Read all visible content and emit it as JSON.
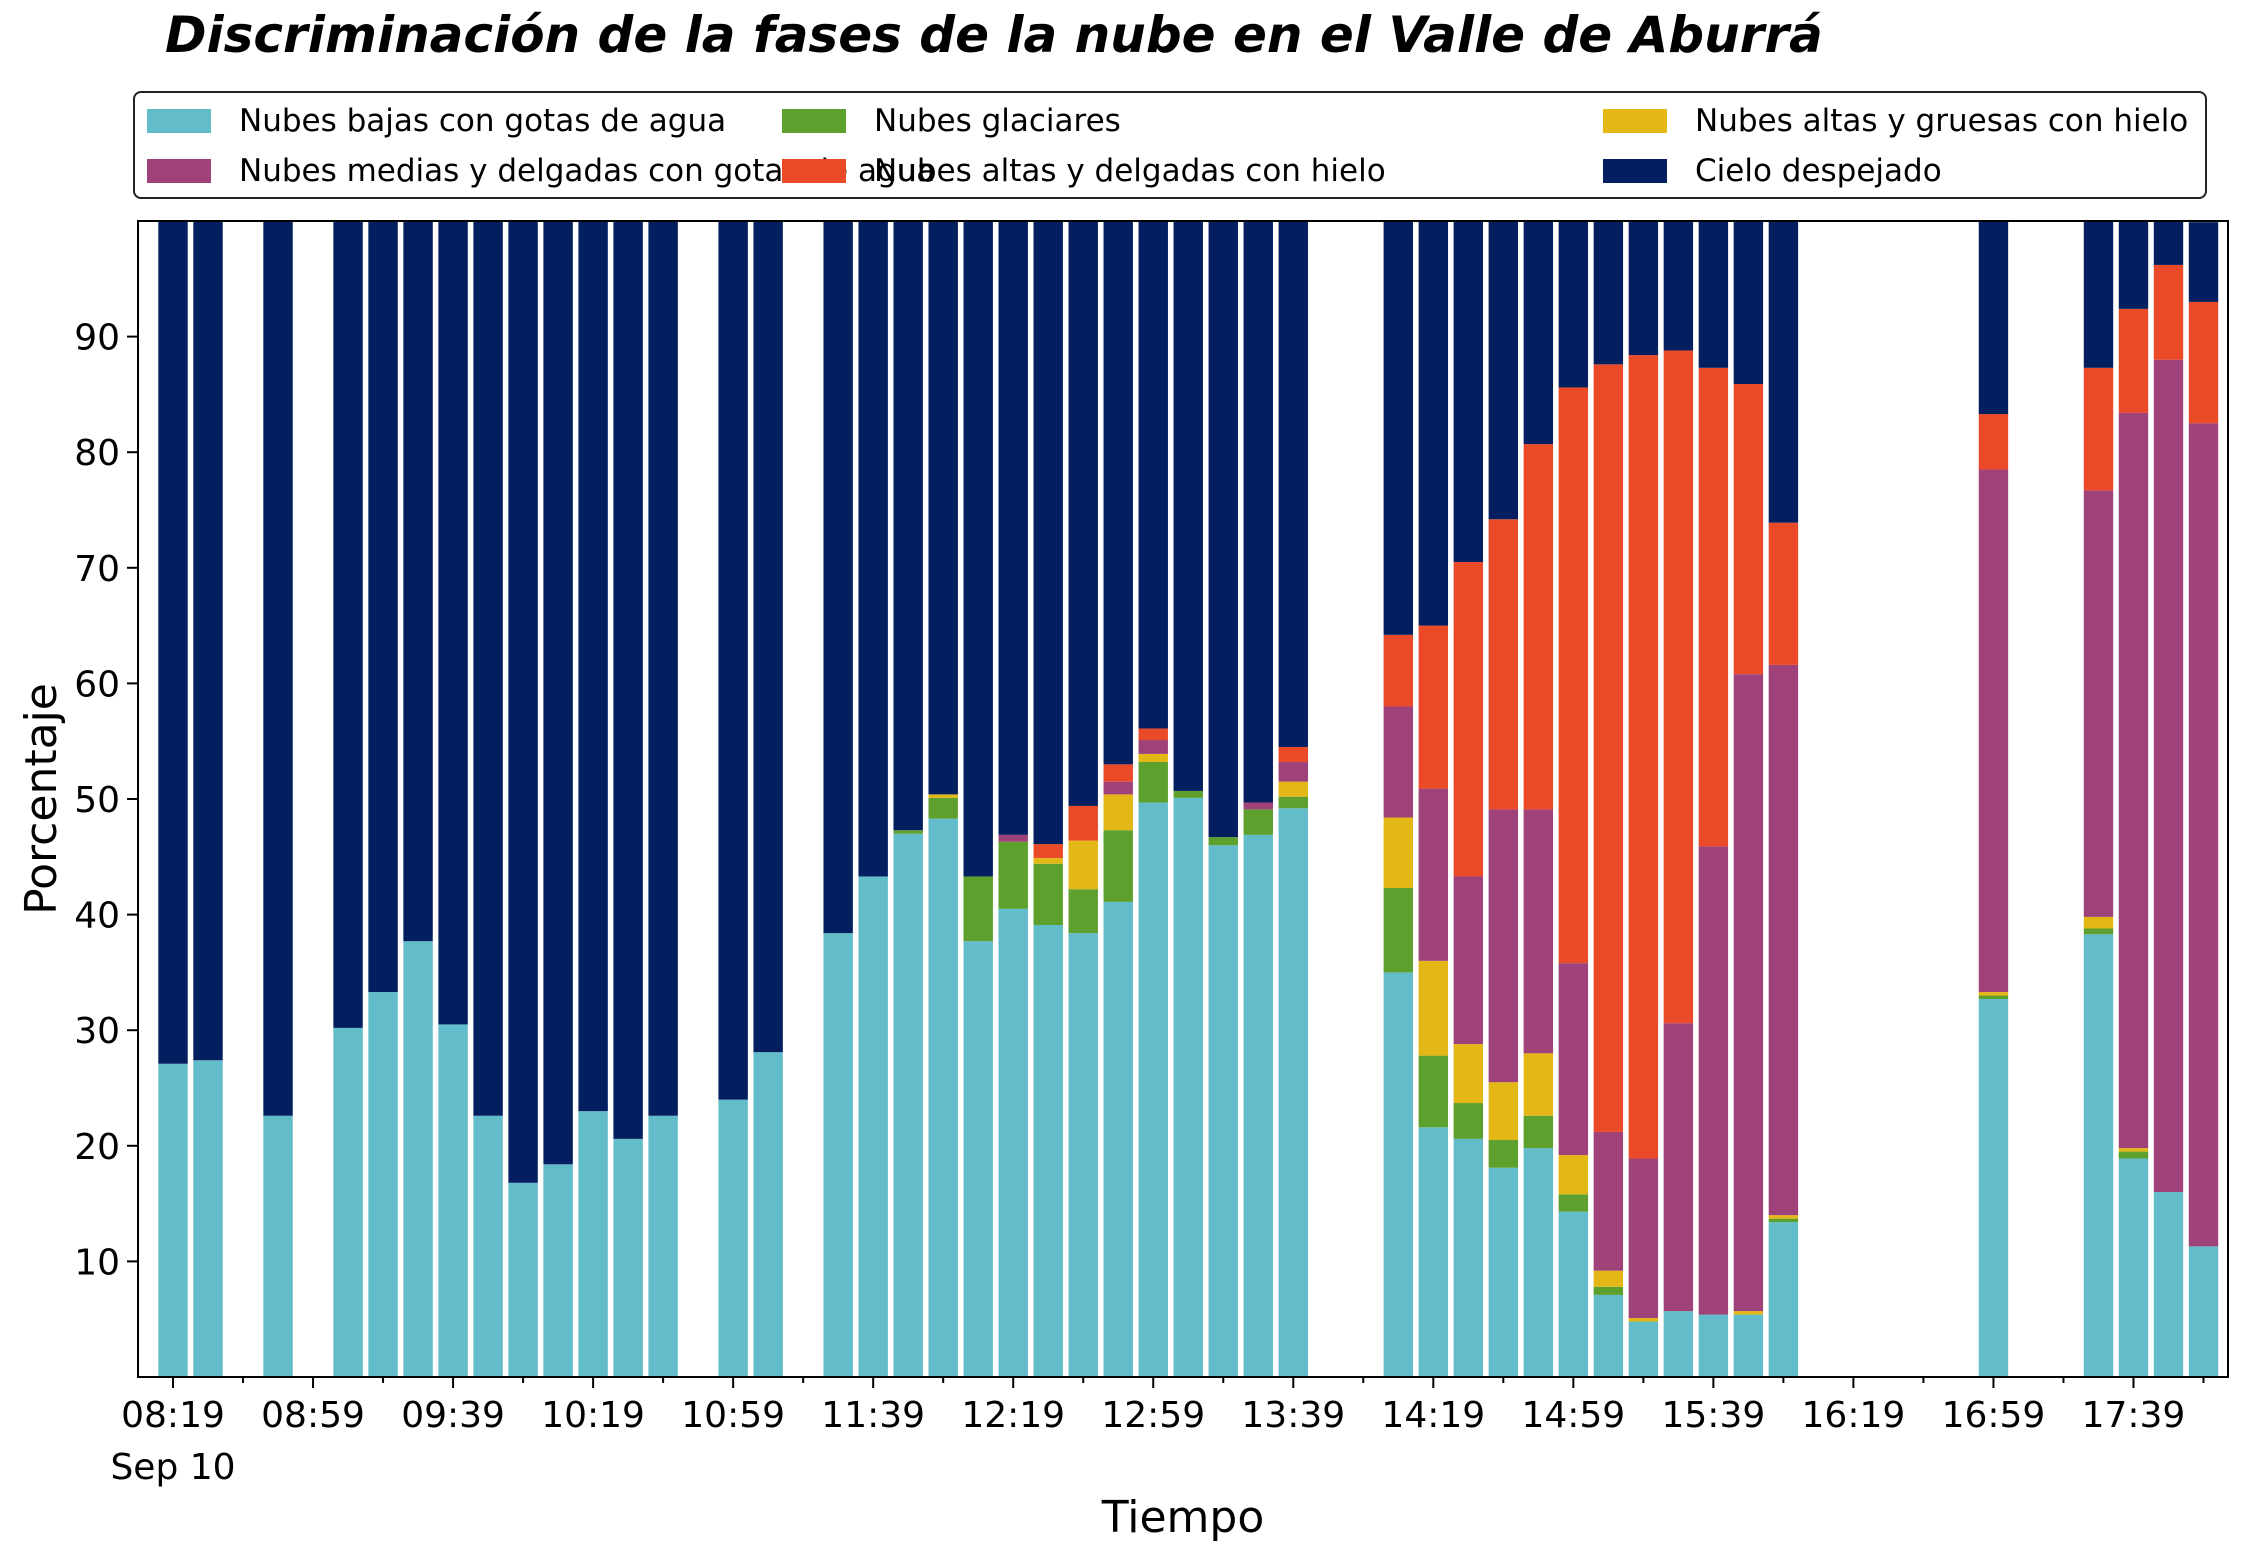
{
  "chart_data": {
    "type": "bar",
    "stacked": true,
    "title": "Discriminación de la fases de la nube en el Valle de Aburrá",
    "xlabel": "Tiempo",
    "ylabel": "Porcentaje",
    "ylim": [
      0,
      100
    ],
    "yticks": [
      10,
      20,
      30,
      40,
      50,
      60,
      70,
      80,
      90
    ],
    "xlim": [
      "08:09",
      "18:06"
    ],
    "x_date_label": "Sep 10",
    "x_major_ticks": [
      "08:19",
      "08:59",
      "09:39",
      "10:19",
      "10:59",
      "11:39",
      "12:19",
      "12:59",
      "13:39",
      "14:19",
      "14:59",
      "15:39",
      "16:19",
      "16:59",
      "17:39"
    ],
    "x_minor_ticks": [
      "08:39",
      "09:19",
      "09:59",
      "10:39",
      "11:19",
      "11:59",
      "12:39",
      "13:19",
      "13:59",
      "14:39",
      "15:19",
      "15:59",
      "16:39",
      "17:19",
      "17:59"
    ],
    "legend": {
      "placement": "top-outside",
      "columns": 3
    },
    "times": [
      "08:19",
      "08:29",
      "08:49",
      "09:09",
      "09:19",
      "09:29",
      "09:39",
      "09:49",
      "09:59",
      "10:09",
      "10:19",
      "10:29",
      "10:39",
      "10:59",
      "11:09",
      "11:29",
      "11:39",
      "11:49",
      "11:59",
      "12:09",
      "12:19",
      "12:29",
      "12:39",
      "12:49",
      "12:59",
      "13:09",
      "13:19",
      "13:29",
      "13:39",
      "14:09",
      "14:19",
      "14:29",
      "14:39",
      "14:49",
      "14:59",
      "15:09",
      "15:19",
      "15:29",
      "15:39",
      "15:49",
      "15:59",
      "16:59",
      "17:29",
      "17:39",
      "17:49",
      "17:59"
    ],
    "series": [
      {
        "name": "Nubes bajas con gotas de agua",
        "color": "#63bcc9",
        "values": [
          27.1,
          27.4,
          22.6,
          30.2,
          33.3,
          37.7,
          30.5,
          22.6,
          16.8,
          18.4,
          23.0,
          20.6,
          22.6,
          24.0,
          28.1,
          38.4,
          43.3,
          47.0,
          48.3,
          37.7,
          40.5,
          39.1,
          38.4,
          41.1,
          49.7,
          50.1,
          46.0,
          46.9,
          49.2,
          35.0,
          21.6,
          20.6,
          18.1,
          19.8,
          14.3,
          7.1,
          4.8,
          5.7,
          5.4,
          5.4,
          13.4,
          32.7,
          38.3,
          18.9,
          16.0,
          11.3
        ]
      },
      {
        "name": "Nubes glaciares",
        "color": "#5da02e",
        "values": [
          0,
          0,
          0,
          0,
          0,
          0,
          0,
          0,
          0,
          0,
          0,
          0,
          0,
          0,
          0,
          0,
          0,
          0.3,
          1.8,
          5.6,
          5.8,
          5.3,
          3.8,
          6.2,
          3.5,
          0.6,
          0.7,
          2.2,
          1.0,
          7.3,
          6.2,
          3.1,
          2.4,
          2.8,
          1.5,
          0.7,
          0,
          0,
          0,
          0,
          0.3,
          0.3,
          0.5,
          0.6,
          0,
          0
        ]
      },
      {
        "name": "Nubes altas y gruesas con hielo",
        "color": "#e3b716",
        "values": [
          0,
          0,
          0,
          0,
          0,
          0,
          0,
          0,
          0,
          0,
          0,
          0,
          0,
          0,
          0,
          0,
          0,
          0,
          0.3,
          0,
          0,
          0.5,
          4.2,
          3.1,
          0.7,
          0,
          0,
          0,
          1.3,
          6.1,
          8.2,
          5.1,
          5.0,
          5.4,
          3.4,
          1.4,
          0.3,
          0,
          0,
          0.3,
          0.3,
          0.3,
          1.0,
          0.3,
          0,
          0
        ]
      },
      {
        "name": "Nubes medias y delgadas con gotas de agua",
        "color": "#a0427a",
        "values": [
          0,
          0,
          0,
          0,
          0,
          0,
          0,
          0,
          0,
          0,
          0,
          0,
          0,
          0,
          0,
          0,
          0,
          0,
          0,
          0,
          0.6,
          0,
          0,
          1.1,
          1.2,
          0,
          0,
          0.6,
          1.7,
          9.6,
          14.9,
          14.5,
          23.6,
          21.1,
          16.6,
          12.0,
          13.8,
          24.9,
          40.5,
          55.1,
          47.6,
          45.2,
          36.9,
          63.6,
          72.0,
          71.2
        ]
      },
      {
        "name": "Nubes altas y delgadas con hielo",
        "color": "#eb4a29",
        "values": [
          0,
          0,
          0,
          0,
          0,
          0,
          0,
          0,
          0,
          0,
          0,
          0,
          0,
          0,
          0,
          0,
          0,
          0,
          0,
          0,
          0,
          1.2,
          3.0,
          1.5,
          1.0,
          0,
          0,
          0,
          1.3,
          6.2,
          14.1,
          27.2,
          25.1,
          31.6,
          49.8,
          66.4,
          69.5,
          58.2,
          41.4,
          25.1,
          12.3,
          4.8,
          10.6,
          9.0,
          8.2,
          10.5
        ]
      },
      {
        "name": "Cielo despejado",
        "color": "#031f5f",
        "values": [
          72.9,
          72.6,
          77.4,
          69.8,
          66.7,
          62.3,
          69.5,
          77.4,
          83.2,
          81.6,
          77.0,
          79.4,
          77.4,
          76.0,
          71.9,
          61.6,
          56.7,
          52.7,
          49.6,
          56.7,
          53.1,
          53.9,
          50.6,
          47.0,
          43.9,
          49.3,
          53.3,
          50.3,
          45.5,
          35.8,
          35.0,
          29.5,
          25.8,
          19.3,
          14.4,
          12.4,
          11.6,
          11.2,
          12.7,
          14.1,
          26.1,
          16.7,
          12.7,
          7.6,
          3.8,
          6.9
        ]
      }
    ]
  }
}
